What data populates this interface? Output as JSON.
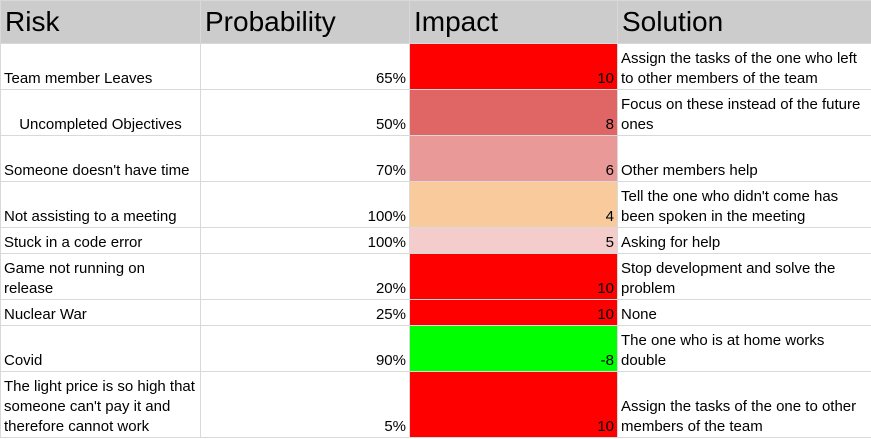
{
  "columns": [
    "Risk",
    "Probability",
    "Impact",
    "Solution"
  ],
  "rows": [
    {
      "risk": "Team member Leaves",
      "probability": "65%",
      "impact": "10",
      "impact_color": "#ff0000",
      "solution": "Assign the tasks of the one who left to other members of the team"
    },
    {
      "risk": "Uncompleted Objectives",
      "probability": "50%",
      "impact": "8",
      "impact_color": "#e06666",
      "solution": "Focus on these instead of the future ones"
    },
    {
      "risk": "Someone doesn't have time",
      "probability": "70%",
      "impact": "6",
      "impact_color": "#ea9999",
      "solution": "Other members help"
    },
    {
      "risk": "Not assisting to a meeting",
      "probability": "100%",
      "impact": "4",
      "impact_color": "#f9cb9c",
      "solution": "Tell the one who didn't come has been spoken in the meeting"
    },
    {
      "risk": "Stuck in a code error",
      "probability": "100%",
      "impact": "5",
      "impact_color": "#f4cccc",
      "solution": "Asking for help"
    },
    {
      "risk": "Game not running on release",
      "probability": "20%",
      "impact": "10",
      "impact_color": "#ff0000",
      "solution": "Stop development and solve the problem"
    },
    {
      "risk": "Nuclear War",
      "probability": "25%",
      "impact": "10",
      "impact_color": "#ff0000",
      "solution": "None"
    },
    {
      "risk": "Covid",
      "probability": "90%",
      "impact": "-8",
      "impact_color": "#00ff00",
      "solution": "The one who is at home works double"
    },
    {
      "risk": "The light price is so high that someone can't pay it and therefore cannot work",
      "probability": "5%",
      "impact": "10",
      "impact_color": "#ff0000",
      "solution": "Assign the tasks of the one to other members of the team"
    }
  ]
}
